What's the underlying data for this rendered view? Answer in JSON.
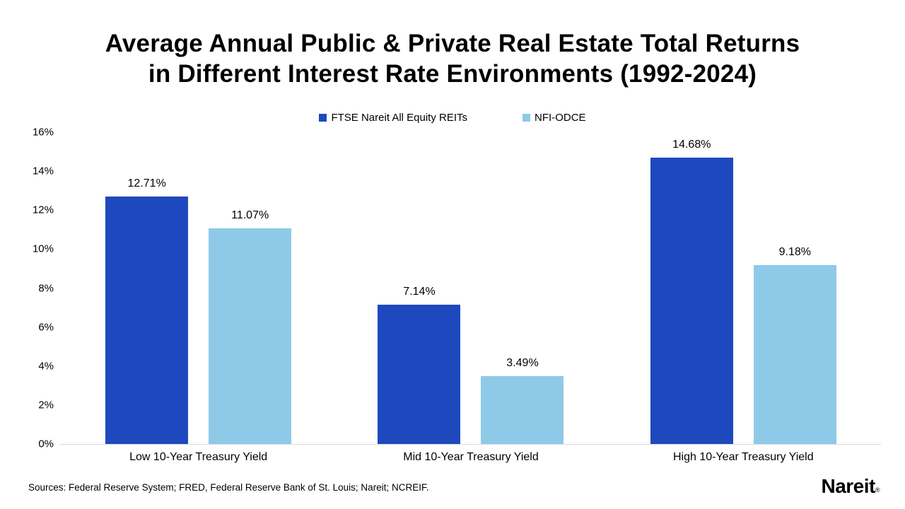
{
  "title": {
    "line1": "Average Annual Public & Private Real Estate Total Returns",
    "line2": "in Different Interest Rate Environments (1992-2024)"
  },
  "legend": [
    {
      "label": "FTSE Nareit All Equity REITs",
      "color": "#1E49BE"
    },
    {
      "label": "NFI-ODCE",
      "color": "#8ECAE8"
    }
  ],
  "chart_data": {
    "type": "bar",
    "title": "Average Annual Public & Private Real Estate Total Returns in Different Interest Rate Environments (1992-2024)",
    "categories": [
      "Low 10-Year Treasury Yield",
      "Mid 10-Year Treasury Yield",
      "High 10-Year Treasury Yield"
    ],
    "series": [
      {
        "name": "FTSE Nareit All Equity REITs",
        "color": "#1E49BE",
        "values": [
          12.71,
          7.14,
          14.68
        ],
        "labels": [
          "12.71%",
          "7.14%",
          "14.68%"
        ]
      },
      {
        "name": "NFI-ODCE",
        "color": "#8ECAE8",
        "values": [
          11.07,
          3.49,
          9.18
        ],
        "labels": [
          "11.07%",
          "3.49%",
          "9.18%"
        ]
      }
    ],
    "xlabel": "",
    "ylabel": "",
    "ylim": [
      0,
      16
    ],
    "y_ticks": [
      "0%",
      "2%",
      "4%",
      "6%",
      "8%",
      "10%",
      "12%",
      "14%",
      "16%"
    ],
    "grid": false,
    "legend_position": "top"
  },
  "footer": {
    "sources": "Sources: Federal Reserve System; FRED, Federal Reserve Bank of St. Louis; Nareit; NCREIF.",
    "logo_text": "Nareit",
    "logo_mark": "®"
  },
  "colors": {
    "series1": "#1E49BE",
    "series2": "#8ECAE8",
    "axis_line": "#d9d9d9",
    "text": "#000000",
    "background": "#ffffff"
  }
}
